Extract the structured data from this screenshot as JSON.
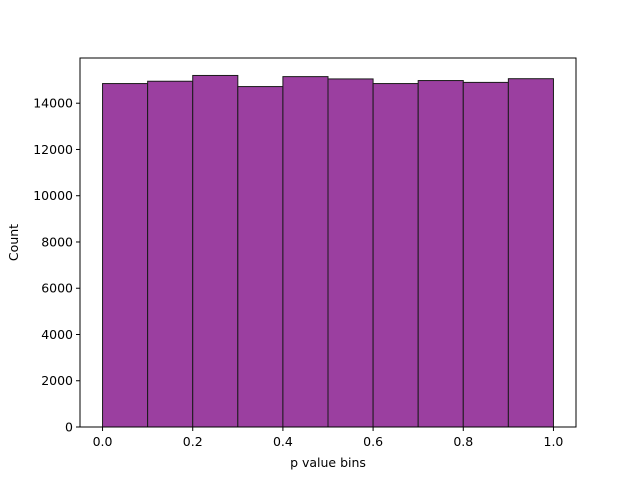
{
  "chart_data": {
    "type": "bar",
    "xlabel": "p value bins",
    "ylabel": "Count",
    "xlim": [
      -0.05,
      1.05
    ],
    "ylim": [
      0,
      15955
    ],
    "bins": [
      {
        "x0": 0.0,
        "x1": 0.1,
        "value": 14850
      },
      {
        "x0": 0.1,
        "x1": 0.2,
        "value": 14950
      },
      {
        "x0": 0.2,
        "x1": 0.3,
        "value": 15200
      },
      {
        "x0": 0.3,
        "x1": 0.4,
        "value": 14720
      },
      {
        "x0": 0.4,
        "x1": 0.5,
        "value": 15150
      },
      {
        "x0": 0.5,
        "x1": 0.6,
        "value": 15050
      },
      {
        "x0": 0.6,
        "x1": 0.7,
        "value": 14850
      },
      {
        "x0": 0.7,
        "x1": 0.8,
        "value": 14980
      },
      {
        "x0": 0.8,
        "x1": 0.9,
        "value": 14900
      },
      {
        "x0": 0.9,
        "x1": 1.0,
        "value": 15060
      }
    ],
    "x_ticks": [
      {
        "value": 0.0,
        "label": "0.0"
      },
      {
        "value": 0.2,
        "label": "0.2"
      },
      {
        "value": 0.4,
        "label": "0.4"
      },
      {
        "value": 0.6,
        "label": "0.6"
      },
      {
        "value": 0.8,
        "label": "0.8"
      },
      {
        "value": 1.0,
        "label": "1.0"
      }
    ],
    "y_ticks": [
      {
        "value": 0,
        "label": "0"
      },
      {
        "value": 2000,
        "label": "2000"
      },
      {
        "value": 4000,
        "label": "4000"
      },
      {
        "value": 6000,
        "label": "6000"
      },
      {
        "value": 8000,
        "label": "8000"
      },
      {
        "value": 10000,
        "label": "10000"
      },
      {
        "value": 12000,
        "label": "12000"
      },
      {
        "value": 14000,
        "label": "14000"
      }
    ],
    "bar_color": "#9b3fa0",
    "edge_color": "#1a1a1a",
    "grid": false,
    "legend": "none"
  }
}
